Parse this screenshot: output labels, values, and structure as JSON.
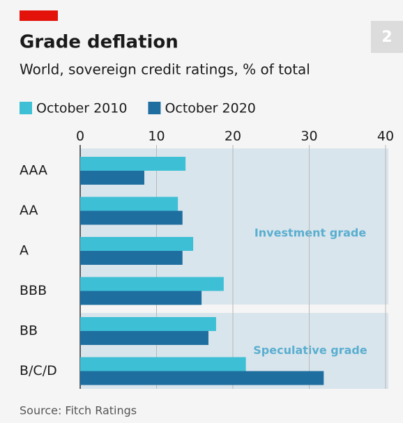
{
  "chart_data": {
    "type": "bar",
    "orientation": "horizontal",
    "badge": "2",
    "title": "Grade deflation",
    "subtitle": "World, sovereign credit ratings, % of total",
    "categories": [
      "AAA",
      "AA",
      "A",
      "BBB",
      "BB",
      "B/C/D"
    ],
    "series": [
      {
        "name": "October 2010",
        "color": "#3dbfd5",
        "values": [
          13.8,
          12.8,
          14.8,
          18.8,
          17.8,
          21.7
        ]
      },
      {
        "name": "October 2020",
        "color": "#1e6ea0",
        "values": [
          8.4,
          13.4,
          13.4,
          15.9,
          16.8,
          31.9
        ]
      }
    ],
    "xlim": [
      0,
      40
    ],
    "xticks": [
      0,
      10,
      20,
      30,
      40
    ],
    "grid": true,
    "regions": [
      {
        "label": "Investment grade",
        "from": "AAA",
        "to": "BBB"
      },
      {
        "label": "Speculative grade",
        "from": "BB",
        "to": "B/C/D"
      }
    ],
    "source": "Source: Fitch Ratings"
  }
}
